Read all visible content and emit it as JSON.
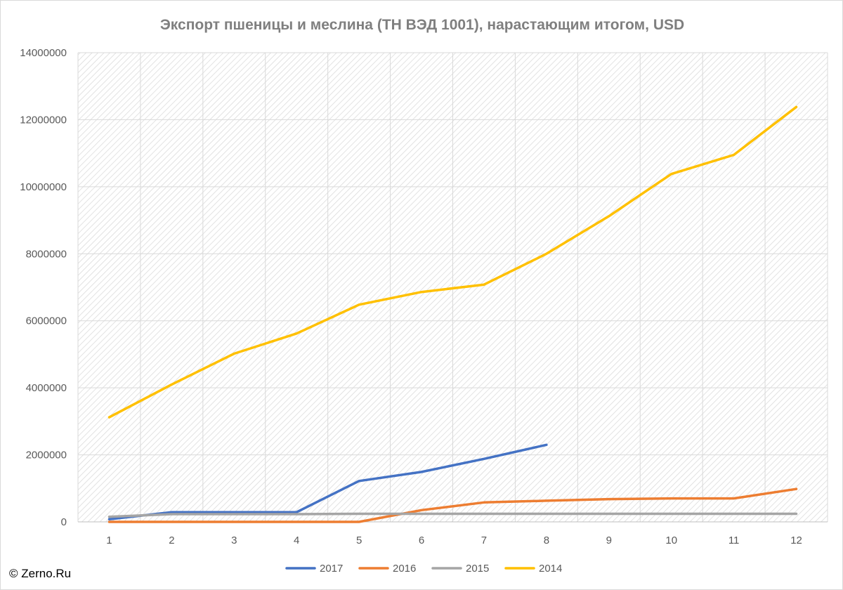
{
  "chart_data": {
    "type": "line",
    "title": "Экспорт пшеницы и меслина (ТН ВЭД 1001), нарастающим итогом, USD",
    "xlabel": "",
    "ylabel": "",
    "x": [
      1,
      2,
      3,
      4,
      5,
      6,
      7,
      8,
      9,
      10,
      11,
      12
    ],
    "ylim": [
      0,
      14000000
    ],
    "yticks": [
      0,
      2000000,
      4000000,
      6000000,
      8000000,
      10000000,
      12000000,
      14000000
    ],
    "grid": true,
    "legend_position": "bottom",
    "series": [
      {
        "name": "2017",
        "color": "#4472c4",
        "values": [
          80000,
          290000,
          290000,
          290000,
          1220000,
          1490000,
          1880000,
          2300000,
          null,
          null,
          null,
          null
        ]
      },
      {
        "name": "2016",
        "color": "#ed7d31",
        "values": [
          0,
          0,
          0,
          0,
          0,
          350000,
          580000,
          630000,
          680000,
          700000,
          700000,
          980000
        ]
      },
      {
        "name": "2015",
        "color": "#a5a5a5",
        "values": [
          150000,
          230000,
          230000,
          230000,
          240000,
          240000,
          240000,
          240000,
          240000,
          240000,
          240000,
          240000
        ]
      },
      {
        "name": "2014",
        "color": "#ffc000",
        "values": [
          3120000,
          4100000,
          5020000,
          5620000,
          6480000,
          6860000,
          7080000,
          8000000,
          9120000,
          10380000,
          10950000,
          12380000
        ]
      }
    ]
  },
  "copyright": "© Zerno.Ru"
}
